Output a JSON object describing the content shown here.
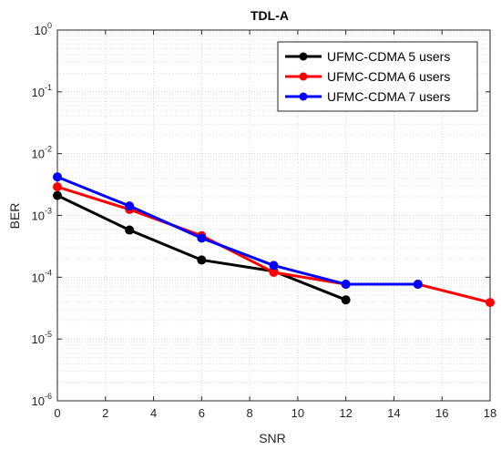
{
  "chart_data": {
    "type": "line",
    "title": "TDL-A",
    "xlabel": "SNR",
    "ylabel": "BER",
    "xlim": [
      0,
      18
    ],
    "ylim": [
      1e-06,
      1
    ],
    "y_scale": "log",
    "grid": "major and minor (dotted)",
    "legend_position": "top-right",
    "x_ticks": [
      "0",
      "2",
      "4",
      "6",
      "8",
      "10",
      "12",
      "14",
      "16",
      "18"
    ],
    "y_ticks": [
      {
        "base": "10",
        "exp": "-6"
      },
      {
        "base": "10",
        "exp": "-5"
      },
      {
        "base": "10",
        "exp": "-4"
      },
      {
        "base": "10",
        "exp": "-3"
      },
      {
        "base": "10",
        "exp": "-2"
      },
      {
        "base": "10",
        "exp": "-1"
      },
      {
        "base": "10",
        "exp": "0"
      }
    ],
    "series": [
      {
        "name": "UFMC-CDMA 5 users",
        "color": "#000000",
        "x": [
          0,
          3,
          6,
          9,
          12
        ],
        "y": [
          0.0021,
          0.00058,
          0.00019,
          0.000125,
          4.3e-05
        ]
      },
      {
        "name": "UFMC-CDMA 6 users",
        "color": "#ff0000",
        "x": [
          0,
          3,
          6,
          9,
          12,
          15,
          18
        ],
        "y": [
          0.0029,
          0.00125,
          0.00047,
          0.00012,
          7.7e-05,
          7.7e-05,
          3.9e-05
        ]
      },
      {
        "name": "UFMC-CDMA 7 users",
        "color": "#0000ff",
        "x": [
          0,
          3,
          6,
          9,
          12,
          15
        ],
        "y": [
          0.0042,
          0.00142,
          0.00043,
          0.000155,
          7.7e-05,
          7.7e-05
        ]
      }
    ]
  }
}
